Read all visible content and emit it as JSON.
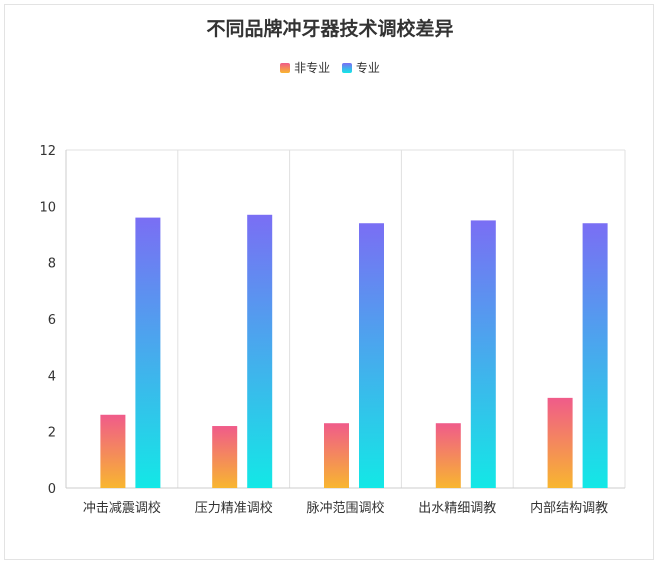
{
  "chart_data": {
    "type": "bar",
    "title": "不同品牌冲牙器技术调校差异",
    "categories": [
      "冲击减震调校",
      "压力精准调校",
      "脉冲范围调校",
      "出水精细调教",
      "内部结构调教"
    ],
    "series": [
      {
        "name": "非专业",
        "values": [
          2.6,
          2.2,
          2.3,
          2.3,
          3.2
        ],
        "color_top": "#f05b8a",
        "color_bottom": "#f8b630"
      },
      {
        "name": "专业",
        "values": [
          9.6,
          9.7,
          9.4,
          9.5,
          9.4
        ],
        "color_top": "#7a6ef4",
        "color_bottom": "#13e8e6"
      }
    ],
    "ylim": [
      0,
      12
    ],
    "yticks": [
      0,
      2,
      4,
      6,
      8,
      10,
      12
    ],
    "xlabel": "",
    "ylabel": "",
    "grid": "vertical category separators",
    "legend": "top-center"
  }
}
